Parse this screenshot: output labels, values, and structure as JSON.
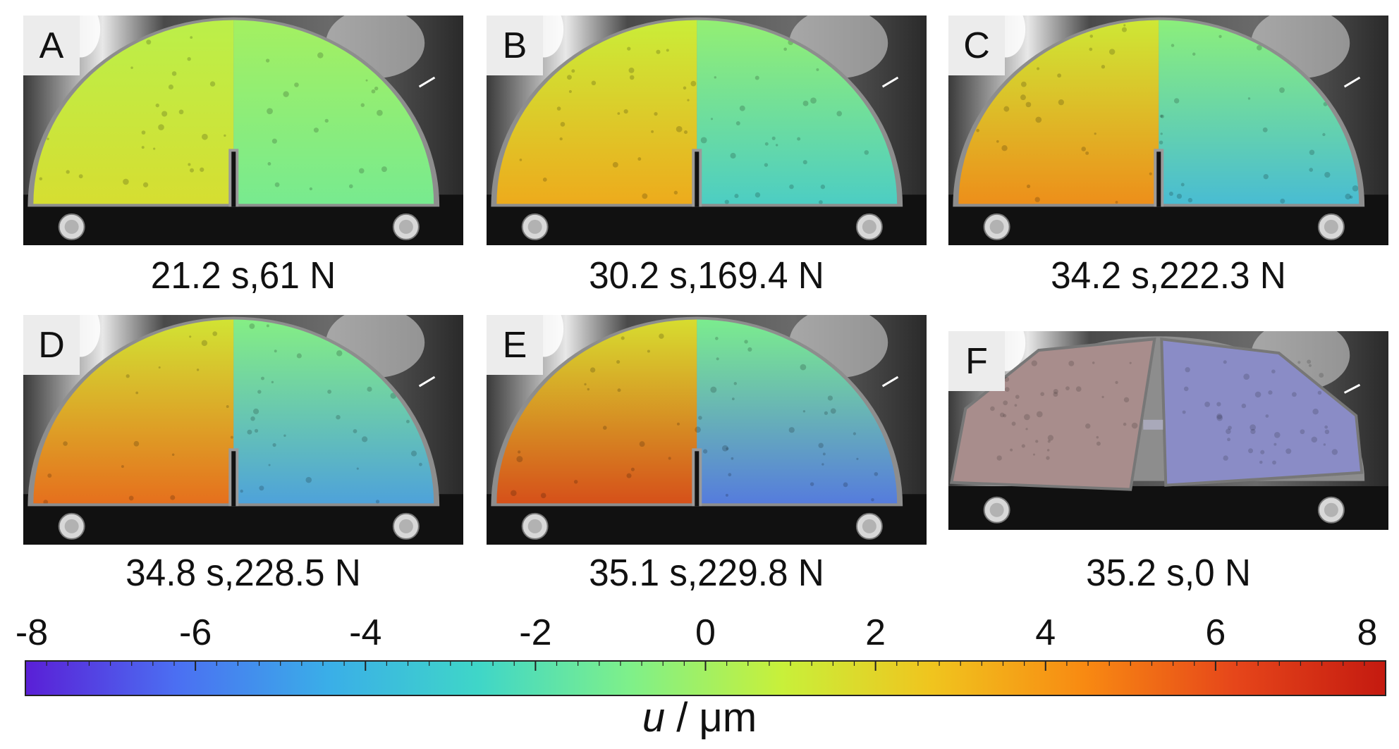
{
  "panels": [
    {
      "letter": "A",
      "caption": "21.2 s,61 N",
      "state": "intact",
      "strength": 0.12
    },
    {
      "letter": "B",
      "caption": "30.2 s,169.4 N",
      "state": "intact",
      "strength": 0.45
    },
    {
      "letter": "C",
      "caption": "34.2 s,222.3 N",
      "state": "intact",
      "strength": 0.6
    },
    {
      "letter": "D",
      "caption": "34.8 s,228.5 N",
      "state": "intact",
      "strength": 0.75
    },
    {
      "letter": "E",
      "caption": "35.1 s,229.8 N",
      "state": "intact",
      "strength": 0.95
    },
    {
      "letter": "F",
      "caption": "35.2 s,0 N",
      "state": "fractured",
      "strength": 0
    }
  ],
  "colorbar": {
    "min": -8,
    "max": 8,
    "ticks": [
      "-8",
      "-6",
      "-4",
      "-2",
      "0",
      "2",
      "4",
      "6",
      "8"
    ],
    "label_var": "u",
    "label_unit": " / μm",
    "colors": [
      "#5a1fd6",
      "#4b6ff2",
      "#3aaee8",
      "#3fd6c8",
      "#7ef08a",
      "#c8f03a",
      "#f0c41e",
      "#f88a12",
      "#e6461a",
      "#c41a10"
    ]
  }
}
